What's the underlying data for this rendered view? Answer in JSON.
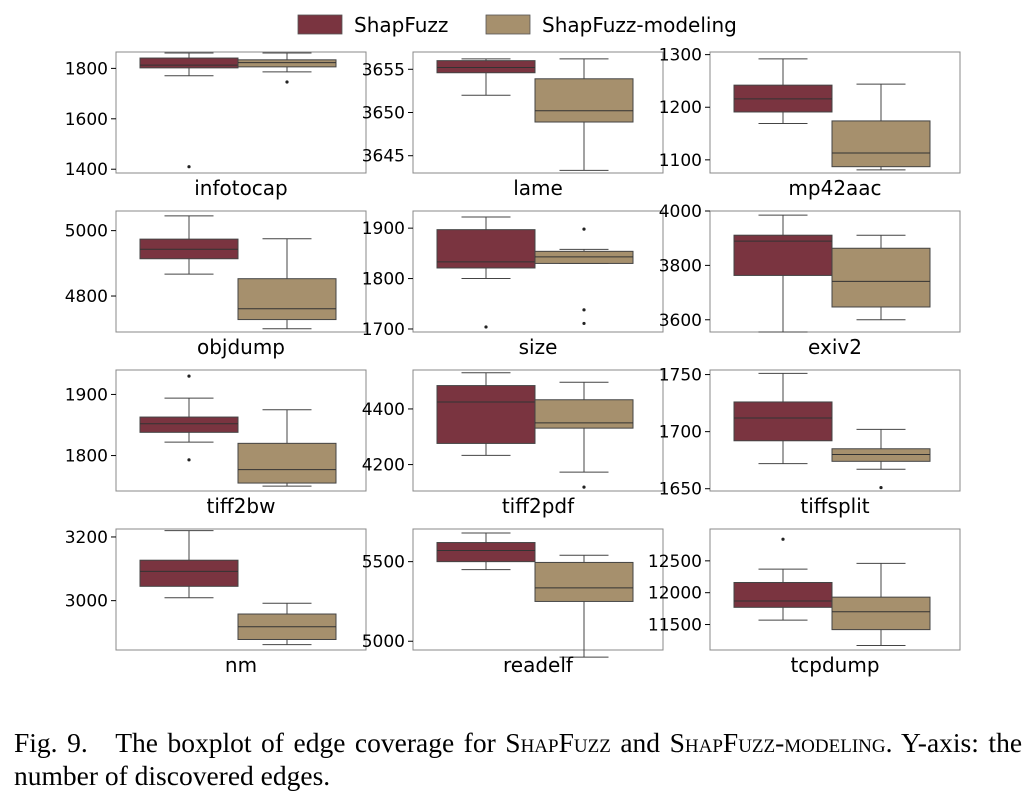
{
  "caption": {
    "fig_label": "Fig. 9.",
    "pre": "The boxplot of edge coverage for",
    "name1": "ShapFuzz",
    "mid": "and",
    "name2": "ShapFuzz-modeling",
    "post": ". Y-axis: the number of discovered edges."
  },
  "colors": {
    "ShapFuzz": "#7a3440",
    "ShapFuzz-modeling": "#a6906d"
  },
  "chart_data": {
    "type": "boxplot",
    "legend": {
      "position": "top-center",
      "entries": [
        "ShapFuzz",
        "ShapFuzz-modeling"
      ]
    },
    "grid": false,
    "panels": [
      {
        "title": "infotocap",
        "ylim": [
          1385,
          1865
        ],
        "yticks": [
          1400,
          1600,
          1800
        ],
        "boxes": [
          {
            "series": "ShapFuzz",
            "whislo": 1771,
            "q1": 1802,
            "med": 1813,
            "q3": 1841,
            "whishi": 1861,
            "fliers": [
              1410
            ]
          },
          {
            "series": "ShapFuzz-modeling",
            "whislo": 1786,
            "q1": 1806,
            "med": 1823,
            "q3": 1834,
            "whishi": 1861,
            "fliers": [
              1746
            ]
          }
        ]
      },
      {
        "title": "lame",
        "ylim": [
          3643,
          3657
        ],
        "yticks": [
          3645,
          3650,
          3655
        ],
        "boxes": [
          {
            "series": "ShapFuzz",
            "whislo": 3652.0,
            "q1": 3654.6,
            "med": 3655.2,
            "q3": 3656.0,
            "whishi": 3656.2,
            "fliers": []
          },
          {
            "series": "ShapFuzz-modeling",
            "whislo": 3643.3,
            "q1": 3648.9,
            "med": 3650.2,
            "q3": 3653.9,
            "whishi": 3656.2,
            "fliers": []
          }
        ]
      },
      {
        "title": "mp42aac",
        "ylim": [
          1075,
          1305
        ],
        "yticks": [
          1100,
          1200,
          1300
        ],
        "boxes": [
          {
            "series": "ShapFuzz",
            "whislo": 1169,
            "q1": 1191,
            "med": 1216,
            "q3": 1242,
            "whishi": 1292,
            "fliers": []
          },
          {
            "series": "ShapFuzz-modeling",
            "whislo": 1081,
            "q1": 1087,
            "med": 1113,
            "q3": 1174,
            "whishi": 1244,
            "fliers": []
          }
        ]
      },
      {
        "title": "objdump",
        "ylim": [
          4690,
          5060
        ],
        "yticks": [
          4800,
          5000
        ],
        "boxes": [
          {
            "series": "ShapFuzz",
            "whislo": 4867,
            "q1": 4914,
            "med": 4943,
            "q3": 4974,
            "whishi": 5045,
            "fliers": []
          },
          {
            "series": "ShapFuzz-modeling",
            "whislo": 4700,
            "q1": 4728,
            "med": 4761,
            "q3": 4853,
            "whishi": 4975,
            "fliers": []
          }
        ]
      },
      {
        "title": "size",
        "ylim": [
          1694,
          1934
        ],
        "yticks": [
          1700,
          1800,
          1900
        ],
        "boxes": [
          {
            "series": "ShapFuzz",
            "whislo": 1800,
            "q1": 1821,
            "med": 1833,
            "q3": 1897,
            "whishi": 1922,
            "fliers": [
              1704
            ]
          },
          {
            "series": "ShapFuzz-modeling",
            "whislo": 1830,
            "q1": 1830,
            "med": 1843,
            "q3": 1854,
            "whishi": 1858,
            "fliers": [
              1898,
              1738,
              1711
            ]
          }
        ]
      },
      {
        "title": "exiv2",
        "ylim": [
          3555,
          4000
        ],
        "yticks": [
          3600,
          3800,
          4000
        ],
        "boxes": [
          {
            "series": "ShapFuzz",
            "whislo": 3555,
            "q1": 3763,
            "med": 3889,
            "q3": 3911,
            "whishi": 3985,
            "fliers": []
          },
          {
            "series": "ShapFuzz-modeling",
            "whislo": 3600,
            "q1": 3647,
            "med": 3741,
            "q3": 3863,
            "whishi": 3911,
            "fliers": []
          }
        ]
      },
      {
        "title": "tiff2bw",
        "ylim": [
          1742,
          1940
        ],
        "yticks": [
          1800,
          1900
        ],
        "boxes": [
          {
            "series": "ShapFuzz",
            "whislo": 1822,
            "q1": 1838,
            "med": 1852,
            "q3": 1863,
            "whishi": 1894,
            "fliers": [
              1930,
              1793
            ]
          },
          {
            "series": "ShapFuzz-modeling",
            "whislo": 1750,
            "q1": 1755,
            "med": 1777,
            "q3": 1820,
            "whishi": 1875,
            "fliers": []
          }
        ]
      },
      {
        "title": "tiff2pdf",
        "ylim": [
          4105,
          4540
        ],
        "yticks": [
          4200,
          4400
        ],
        "boxes": [
          {
            "series": "ShapFuzz",
            "whislo": 4233,
            "q1": 4276,
            "med": 4425,
            "q3": 4484,
            "whishi": 4530,
            "fliers": []
          },
          {
            "series": "ShapFuzz-modeling",
            "whislo": 4173,
            "q1": 4331,
            "med": 4350,
            "q3": 4433,
            "whishi": 4496,
            "fliers": [
              4119
            ]
          }
        ]
      },
      {
        "title": "tiffsplit",
        "ylim": [
          1648,
          1754
        ],
        "yticks": [
          1650,
          1700,
          1750
        ],
        "boxes": [
          {
            "series": "ShapFuzz",
            "whislo": 1672,
            "q1": 1692,
            "med": 1712,
            "q3": 1726,
            "whishi": 1751,
            "fliers": []
          },
          {
            "series": "ShapFuzz-modeling",
            "whislo": 1667,
            "q1": 1674,
            "med": 1680,
            "q3": 1685,
            "whishi": 1702,
            "fliers": [
              1651
            ]
          }
        ]
      },
      {
        "title": "nm",
        "ylim": [
          2845,
          3225
        ],
        "yticks": [
          3000,
          3200
        ],
        "boxes": [
          {
            "series": "ShapFuzz",
            "whislo": 3009,
            "q1": 3045,
            "med": 3092,
            "q3": 3127,
            "whishi": 3220,
            "fliers": []
          },
          {
            "series": "ShapFuzz-modeling",
            "whislo": 2862,
            "q1": 2878,
            "med": 2918,
            "q3": 2958,
            "whishi": 2992,
            "fliers": []
          }
        ]
      },
      {
        "title": "readelf",
        "ylim": [
          4945,
          5705
        ],
        "yticks": [
          5000,
          5500
        ],
        "boxes": [
          {
            "series": "ShapFuzz",
            "whislo": 5450,
            "q1": 5500,
            "med": 5570,
            "q3": 5620,
            "whishi": 5680,
            "fliers": []
          },
          {
            "series": "ShapFuzz-modeling",
            "whislo": 4900,
            "q1": 5250,
            "med": 5335,
            "q3": 5495,
            "whishi": 5540,
            "fliers": []
          }
        ]
      },
      {
        "title": "tcpdump",
        "ylim": [
          11100,
          13000
        ],
        "yticks": [
          11500,
          12000,
          12500
        ],
        "boxes": [
          {
            "series": "ShapFuzz",
            "whislo": 11570,
            "q1": 11770,
            "med": 11870,
            "q3": 12160,
            "whishi": 12370,
            "fliers": [
              12840
            ]
          },
          {
            "series": "ShapFuzz-modeling",
            "whislo": 11170,
            "q1": 11420,
            "med": 11700,
            "q3": 11930,
            "whishi": 12460,
            "fliers": []
          }
        ]
      }
    ]
  }
}
